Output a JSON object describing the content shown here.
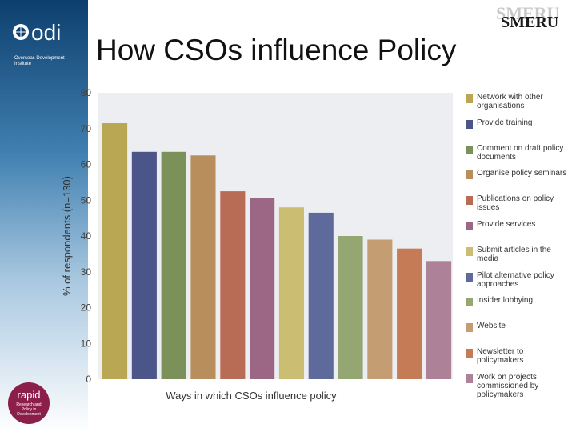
{
  "slide": {
    "title": "How CSOs influence Policy"
  },
  "logos": {
    "odi": {
      "word": "odi",
      "subtitle": "Overseas Development Institute"
    },
    "smeru": {
      "word": "SMERU"
    },
    "rapid": {
      "word": "rapid",
      "subtitle": "Research and Policy in Development"
    }
  },
  "colors": {
    "sidebar_dark": "#0d3f6e",
    "plot_background": "#eceef1",
    "rapid_logo": "#8c1f4a"
  },
  "chart_data": {
    "type": "bar",
    "xlabel": "Ways in which CSOs influence policy",
    "ylabel": "% of respondents (n=130)",
    "ylim": [
      0,
      80
    ],
    "yticks": [
      "0",
      "10",
      "20",
      "30",
      "40",
      "50",
      "60",
      "70",
      "80"
    ],
    "grid": false,
    "legend_position": "right",
    "categories": [
      "Network with other organisations",
      "Provide training",
      "Comment on draft policy documents",
      "Organise policy seminars",
      "Publications on policy issues",
      "Provide services",
      "Submit articles in the media",
      "Pilot alternative policy approaches",
      "Insider lobbying",
      "Website",
      "Newsletter to policymakers",
      "Work on projects commissioned by policymakers"
    ],
    "values": [
      71.5,
      63.5,
      63.5,
      62.5,
      52.5,
      50.5,
      48,
      46.5,
      40,
      39,
      36.5,
      33
    ],
    "colors": [
      "#b9a753",
      "#4c5589",
      "#7b9159",
      "#b88e5c",
      "#b86b55",
      "#9c6785",
      "#cbbd72",
      "#5e6a9b",
      "#94a671",
      "#c49e72",
      "#c57b56",
      "#ad8299"
    ]
  }
}
